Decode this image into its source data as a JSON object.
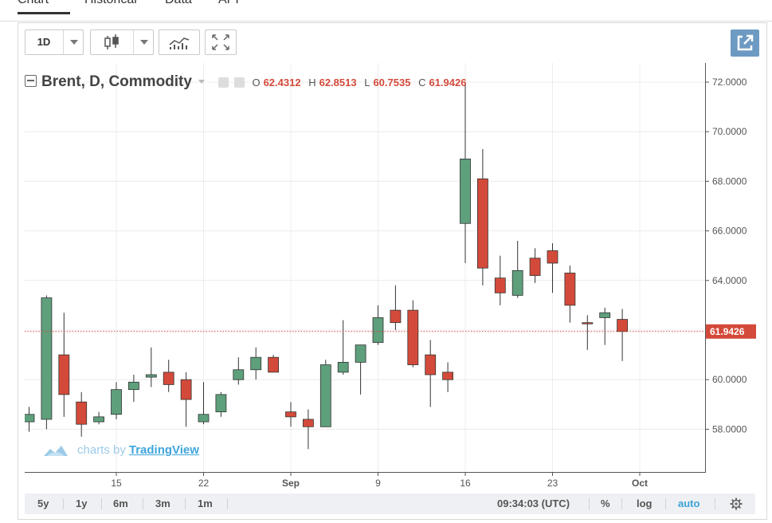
{
  "tabs": [
    {
      "label": "Chart",
      "active": true
    },
    {
      "label": "Historical",
      "active": false
    },
    {
      "label": "Data",
      "active": false
    },
    {
      "label": "API",
      "active": false
    }
  ],
  "toolbar": {
    "interval_label": "1D",
    "icons": [
      "candlestick-icon",
      "indicators-icon",
      "fullscreen-icon",
      "popout-icon"
    ]
  },
  "legend": {
    "symbol": "Brent, D, Commodity",
    "open_label": "O",
    "open": "62.4312",
    "high_label": "H",
    "high": "62.8513",
    "low_label": "L",
    "low": "60.7535",
    "close_label": "C",
    "close": "61.9426"
  },
  "branding": {
    "prefix": "charts by",
    "name": "TradingView"
  },
  "bottom_bar": {
    "ranges": [
      "5y",
      "1y",
      "6m",
      "3m",
      "1m"
    ],
    "time": "09:34:03 (UTC)",
    "percent": "%",
    "log": "log",
    "auto": "auto"
  },
  "colors": {
    "up": "#5e9f7c",
    "down": "#d44a3a",
    "price_line": "#d44a3a",
    "accent": "#3ba2d8"
  },
  "chart_data": {
    "type": "candlestick",
    "ylim": [
      56.5,
      72.5
    ],
    "yticks": [
      "72.0000",
      "70.0000",
      "68.0000",
      "66.0000",
      "64.0000",
      "62.0000",
      "60.0000",
      "58.0000"
    ],
    "ytick_values": [
      72,
      70,
      68,
      66,
      64,
      62,
      60,
      58
    ],
    "xticks": [
      {
        "label": "15",
        "index": 5
      },
      {
        "label": "22",
        "index": 10
      },
      {
        "label": "Sep",
        "index": 15
      },
      {
        "label": "9",
        "index": 20
      },
      {
        "label": "16",
        "index": 25
      },
      {
        "label": "23",
        "index": 30
      },
      {
        "label": "Oct",
        "index": 35
      }
    ],
    "last_price": "61.9426",
    "last_value": 61.9426,
    "candles": [
      {
        "o": 58.3,
        "h": 58.9,
        "l": 57.9,
        "c": 58.6
      },
      {
        "o": 58.4,
        "h": 63.4,
        "l": 58.0,
        "c": 63.3
      },
      {
        "o": 61.0,
        "h": 62.7,
        "l": 58.5,
        "c": 59.4
      },
      {
        "o": 59.1,
        "h": 59.5,
        "l": 57.7,
        "c": 58.2
      },
      {
        "o": 58.3,
        "h": 58.7,
        "l": 58.2,
        "c": 58.5
      },
      {
        "o": 58.6,
        "h": 59.9,
        "l": 58.4,
        "c": 59.6
      },
      {
        "o": 59.6,
        "h": 60.2,
        "l": 59.1,
        "c": 59.9
      },
      {
        "o": 60.1,
        "h": 61.3,
        "l": 59.7,
        "c": 60.2
      },
      {
        "o": 60.3,
        "h": 60.8,
        "l": 59.5,
        "c": 59.8
      },
      {
        "o": 60.0,
        "h": 60.3,
        "l": 58.1,
        "c": 59.2
      },
      {
        "o": 58.3,
        "h": 59.9,
        "l": 58.2,
        "c": 58.6
      },
      {
        "o": 58.7,
        "h": 59.5,
        "l": 58.5,
        "c": 59.4
      },
      {
        "o": 60.0,
        "h": 60.9,
        "l": 59.8,
        "c": 60.4
      },
      {
        "o": 60.4,
        "h": 61.3,
        "l": 60.0,
        "c": 60.9
      },
      {
        "o": 60.9,
        "h": 61.0,
        "l": 60.3,
        "c": 60.3
      },
      {
        "o": 58.7,
        "h": 59.1,
        "l": 58.1,
        "c": 58.5
      },
      {
        "o": 58.4,
        "h": 58.8,
        "l": 57.2,
        "c": 58.1
      },
      {
        "o": 58.1,
        "h": 60.8,
        "l": 58.1,
        "c": 60.6
      },
      {
        "o": 60.3,
        "h": 62.4,
        "l": 60.2,
        "c": 60.7
      },
      {
        "o": 60.7,
        "h": 61.4,
        "l": 59.4,
        "c": 61.4
      },
      {
        "o": 61.5,
        "h": 63.0,
        "l": 61.4,
        "c": 62.5
      },
      {
        "o": 62.8,
        "h": 63.8,
        "l": 62.0,
        "c": 62.3
      },
      {
        "o": 62.8,
        "h": 63.2,
        "l": 60.5,
        "c": 60.6
      },
      {
        "o": 61.0,
        "h": 61.6,
        "l": 58.9,
        "c": 60.2
      },
      {
        "o": 60.3,
        "h": 60.7,
        "l": 59.5,
        "c": 60.0
      },
      {
        "o": 66.3,
        "h": 72.0,
        "l": 64.7,
        "c": 68.9
      },
      {
        "o": 68.1,
        "h": 69.3,
        "l": 63.8,
        "c": 64.5
      },
      {
        "o": 64.1,
        "h": 65.0,
        "l": 63.0,
        "c": 63.5
      },
      {
        "o": 63.4,
        "h": 65.6,
        "l": 63.3,
        "c": 64.4
      },
      {
        "o": 64.9,
        "h": 65.3,
        "l": 63.9,
        "c": 64.2
      },
      {
        "o": 65.2,
        "h": 65.5,
        "l": 63.5,
        "c": 64.7
      },
      {
        "o": 64.3,
        "h": 64.6,
        "l": 62.3,
        "c": 63.0
      },
      {
        "o": 62.3,
        "h": 62.6,
        "l": 61.2,
        "c": 62.25
      },
      {
        "o": 62.5,
        "h": 62.9,
        "l": 61.4,
        "c": 62.7
      },
      {
        "o": 62.4312,
        "h": 62.8513,
        "l": 60.7535,
        "c": 61.9426
      }
    ]
  }
}
